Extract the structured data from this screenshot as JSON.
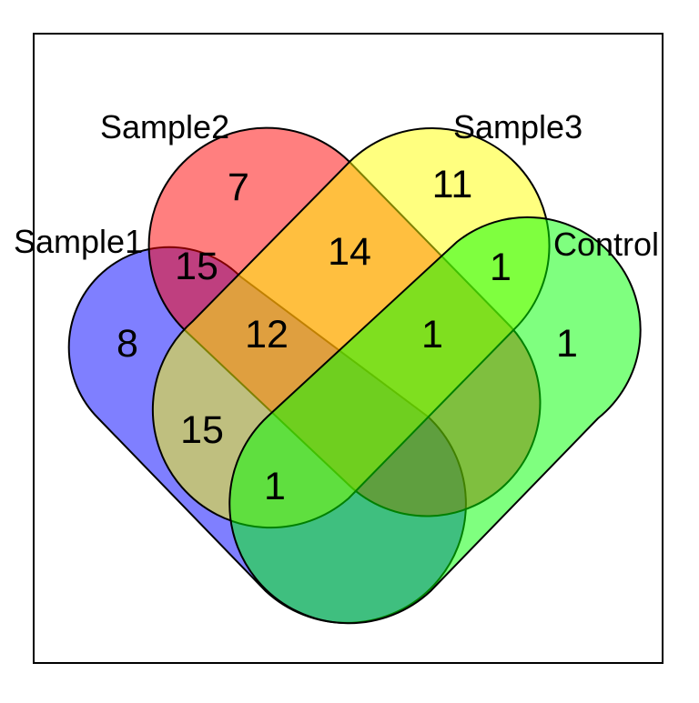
{
  "diagram": {
    "type": "venn-4-set",
    "sets": [
      {
        "id": "sample1",
        "label": "Sample1",
        "color": "#0000ff"
      },
      {
        "id": "sample2",
        "label": "Sample2",
        "color": "#ff0000"
      },
      {
        "id": "sample3",
        "label": "Sample3",
        "color": "#ffff00"
      },
      {
        "id": "control",
        "label": "Control",
        "color": "#00ff00"
      }
    ],
    "regions": [
      {
        "sets": [
          "sample2"
        ],
        "count": "7"
      },
      {
        "sets": [
          "sample3"
        ],
        "count": "11"
      },
      {
        "sets": [
          "sample1",
          "sample2"
        ],
        "count": "15"
      },
      {
        "sets": [
          "sample2",
          "sample3"
        ],
        "count": "14"
      },
      {
        "sets": [
          "sample3",
          "control"
        ],
        "count": "1"
      },
      {
        "sets": [
          "sample1"
        ],
        "count": "8"
      },
      {
        "sets": [
          "sample1",
          "sample2",
          "sample3"
        ],
        "count": "12"
      },
      {
        "sets": [
          "sample2",
          "sample3",
          "control"
        ],
        "count": "1"
      },
      {
        "sets": [
          "control"
        ],
        "count": "1"
      },
      {
        "sets": [
          "sample1",
          "sample3"
        ],
        "count": "15"
      },
      {
        "sets": [
          "sample1",
          "sample3",
          "control"
        ],
        "count": "1"
      }
    ]
  }
}
